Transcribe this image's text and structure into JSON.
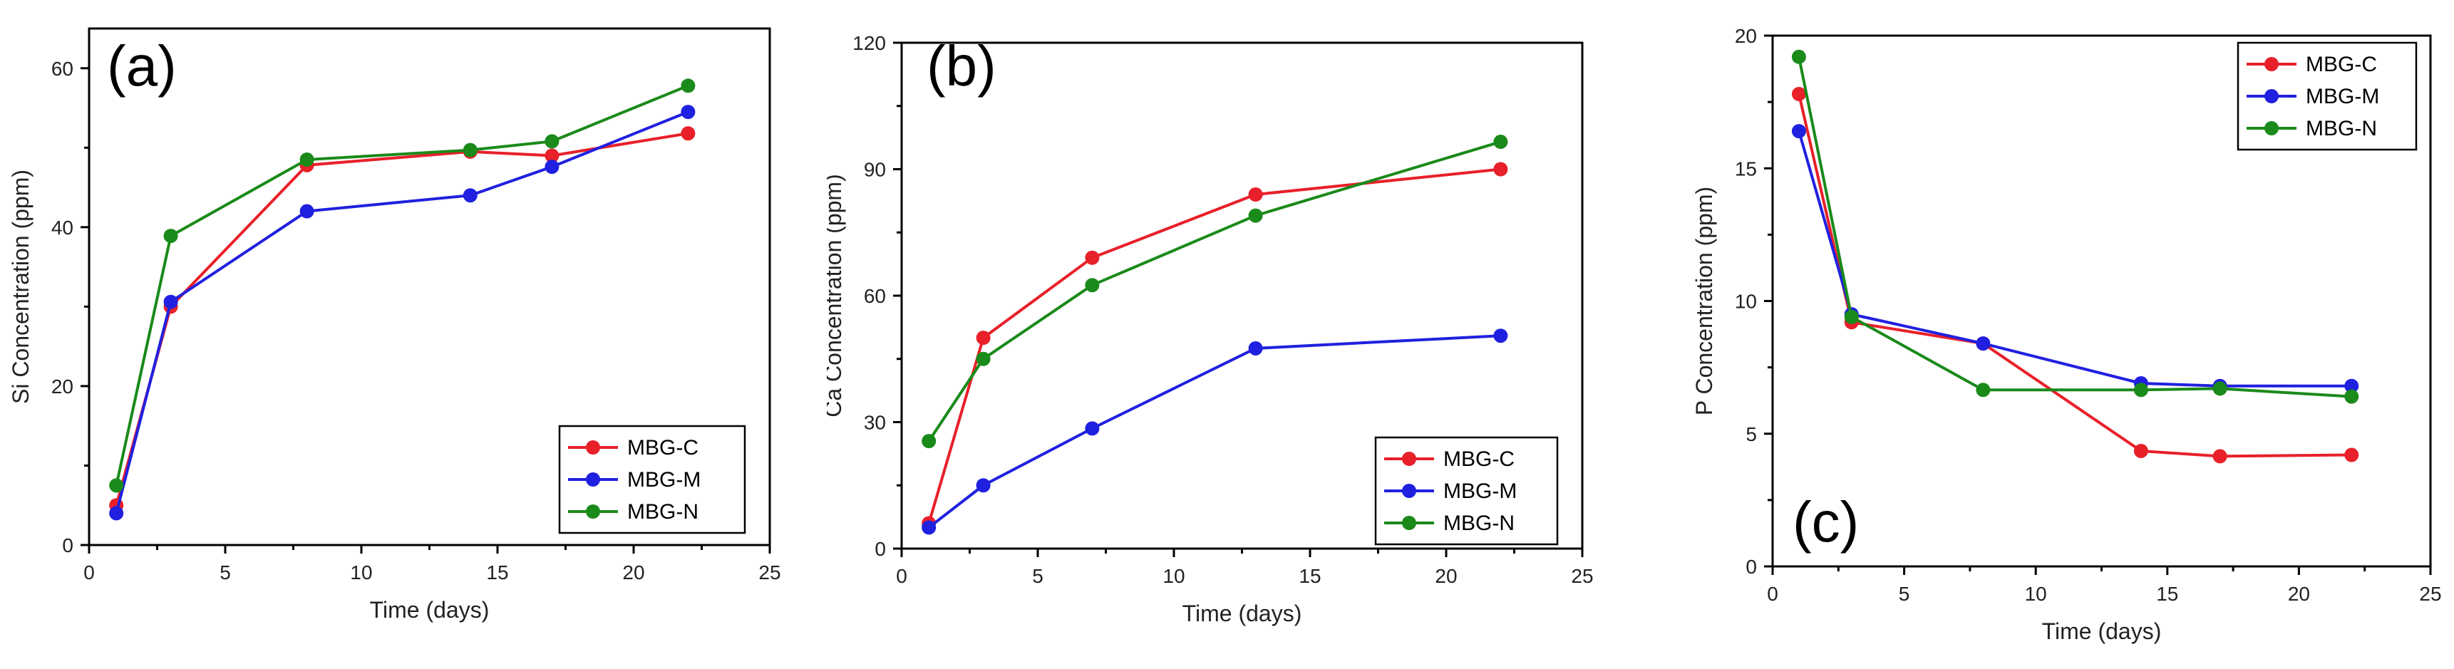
{
  "chart_data": [
    {
      "type": "line",
      "panel_label": "(a)",
      "xlabel": "Time (days)",
      "ylabel": "Si Concentration (ppm)",
      "xlim": [
        0,
        25
      ],
      "ylim": [
        0,
        65
      ],
      "xticks": [
        0,
        5,
        10,
        15,
        20,
        25
      ],
      "yticks": [
        0,
        20,
        40,
        60
      ],
      "legend_position": "bottom-right",
      "series": [
        {
          "name": "MBG-C",
          "color": "#e8202a",
          "x": [
            1,
            3,
            8,
            14,
            17,
            22
          ],
          "y": [
            5,
            30,
            47.8,
            49.5,
            49,
            51.8
          ]
        },
        {
          "name": "MBG-M",
          "color": "#2020e0",
          "x": [
            1,
            3,
            8,
            14,
            17,
            22
          ],
          "y": [
            4,
            30.6,
            42,
            44,
            47.6,
            54.5
          ]
        },
        {
          "name": "MBG-N",
          "color": "#1a8a1a",
          "x": [
            1,
            3,
            8,
            14,
            17,
            22
          ],
          "y": [
            7.5,
            38.9,
            48.5,
            49.7,
            50.8,
            57.8
          ]
        }
      ]
    },
    {
      "type": "line",
      "panel_label": "(b)",
      "xlabel": "Time (days)",
      "ylabel": "Ca Concentration (ppm)",
      "xlim": [
        0,
        25
      ],
      "ylim": [
        0,
        120
      ],
      "xticks": [
        0,
        5,
        10,
        15,
        20,
        25
      ],
      "yticks": [
        0,
        30,
        60,
        90,
        120
      ],
      "legend_position": "bottom-right",
      "series": [
        {
          "name": "MBG-C",
          "color": "#e8202a",
          "x": [
            1,
            3,
            7,
            13,
            22
          ],
          "y": [
            6,
            50,
            69,
            84,
            90
          ]
        },
        {
          "name": "MBG-M",
          "color": "#2020e0",
          "x": [
            1,
            3,
            7,
            13,
            22
          ],
          "y": [
            5,
            15,
            28.5,
            47.5,
            50.5
          ]
        },
        {
          "name": "MBG-N",
          "color": "#1a8a1a",
          "x": [
            1,
            3,
            7,
            13,
            22
          ],
          "y": [
            25.5,
            45,
            62.5,
            79,
            96.5
          ]
        }
      ]
    },
    {
      "type": "line",
      "panel_label": "(c)",
      "xlabel": "Time (days)",
      "ylabel": "P Concentration (ppm)",
      "xlim": [
        0,
        25
      ],
      "ylim": [
        0,
        20
      ],
      "xticks": [
        0,
        5,
        10,
        15,
        20,
        25
      ],
      "yticks": [
        0,
        5,
        10,
        15,
        20
      ],
      "legend_position": "top-right",
      "series": [
        {
          "name": "MBG-C",
          "color": "#e8202a",
          "x": [
            1,
            3,
            8,
            14,
            17,
            22
          ],
          "y": [
            17.8,
            9.2,
            8.4,
            4.35,
            4.15,
            4.2
          ]
        },
        {
          "name": "MBG-M",
          "color": "#2020e0",
          "x": [
            1,
            3,
            8,
            14,
            17,
            22
          ],
          "y": [
            16.4,
            9.5,
            8.4,
            6.9,
            6.8,
            6.8
          ]
        },
        {
          "name": "MBG-N",
          "color": "#1a8a1a",
          "x": [
            1,
            3,
            8,
            14,
            17,
            22
          ],
          "y": [
            19.2,
            9.4,
            6.65,
            6.65,
            6.7,
            6.4
          ]
        }
      ]
    }
  ]
}
